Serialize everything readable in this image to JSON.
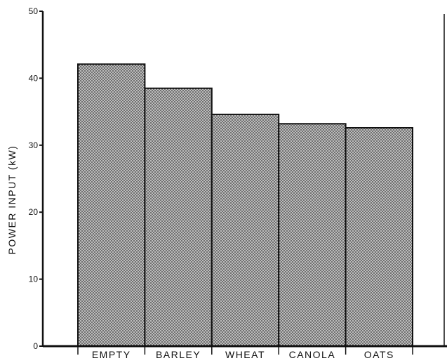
{
  "chart_data": {
    "type": "bar",
    "categories": [
      "EMPTY",
      "BARLEY",
      "WHEAT",
      "CANOLA",
      "OATS"
    ],
    "values": [
      42.1,
      38.5,
      34.6,
      33.2,
      32.6
    ],
    "title": "",
    "xlabel": "",
    "ylabel": "POWER INPUT (kW)",
    "ylim": [
      0,
      50
    ],
    "yticks": [
      "0",
      "10",
      "20",
      "30",
      "40",
      "50"
    ],
    "grid": false,
    "bar_pattern": "stippled",
    "colors": {
      "bar_fill": "#bdbdbd",
      "bar_dot": "#3a3a3a",
      "stroke": "#111111",
      "background": "#ffffff"
    }
  }
}
